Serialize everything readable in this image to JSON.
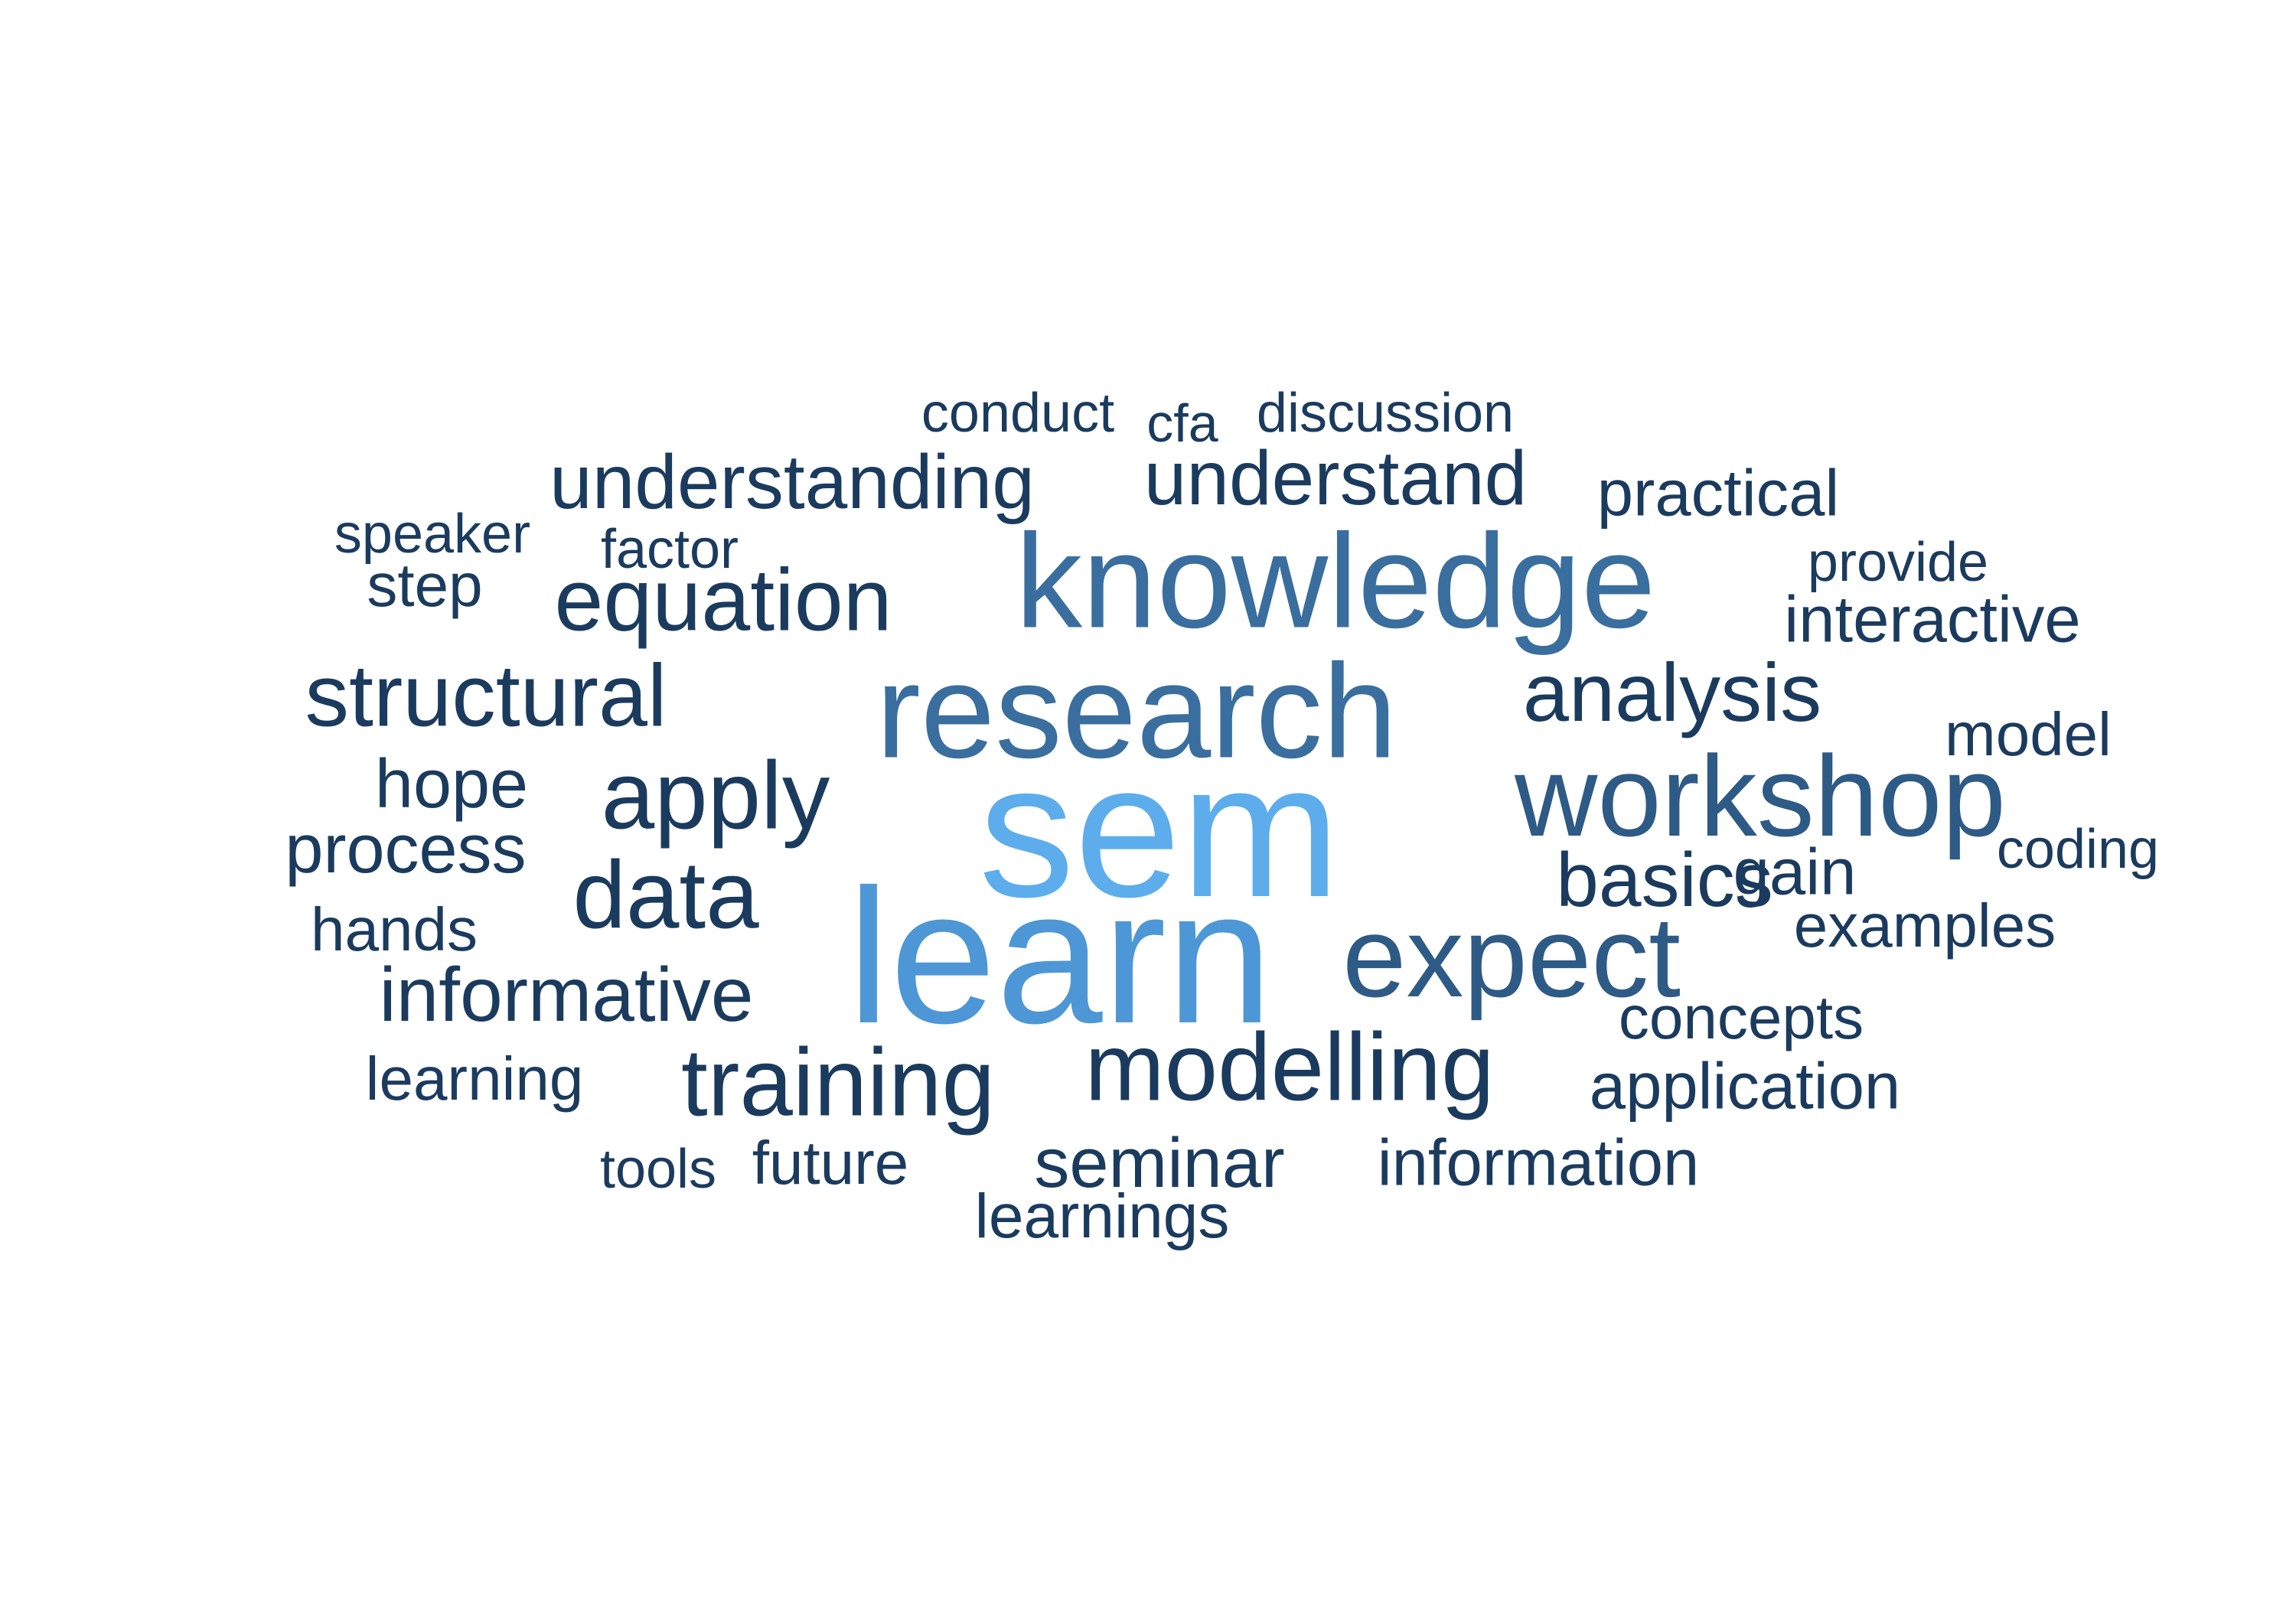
{
  "word_cloud": {
    "palette": {
      "top": "#5DADEC",
      "high": "#4E97D6",
      "mid": "#3A6E9E",
      "midlow": "#2E5A86",
      "low": "#1B3B5E"
    },
    "words": [
      {
        "text": "sem",
        "tone": "top"
      },
      {
        "text": "learn",
        "tone": "high"
      },
      {
        "text": "research",
        "tone": "mid"
      },
      {
        "text": "knowledge",
        "tone": "mid"
      },
      {
        "text": "workshop",
        "tone": "midlow"
      },
      {
        "text": "expect",
        "tone": "midlow"
      },
      {
        "text": "modelling",
        "tone": "low"
      },
      {
        "text": "training",
        "tone": "low"
      },
      {
        "text": "equation",
        "tone": "low"
      },
      {
        "text": "structural",
        "tone": "low"
      },
      {
        "text": "apply",
        "tone": "low"
      },
      {
        "text": "data",
        "tone": "low"
      },
      {
        "text": "analysis",
        "tone": "low"
      },
      {
        "text": "understanding",
        "tone": "low"
      },
      {
        "text": "understand",
        "tone": "low"
      },
      {
        "text": "informative",
        "tone": "low"
      },
      {
        "text": "basics",
        "tone": "low"
      },
      {
        "text": "seminar",
        "tone": "low"
      },
      {
        "text": "interactive",
        "tone": "low"
      },
      {
        "text": "application",
        "tone": "low"
      },
      {
        "text": "practical",
        "tone": "low"
      },
      {
        "text": "information",
        "tone": "low"
      },
      {
        "text": "process",
        "tone": "low"
      },
      {
        "text": "hope",
        "tone": "low"
      },
      {
        "text": "concepts",
        "tone": "low"
      },
      {
        "text": "examples",
        "tone": "low"
      },
      {
        "text": "learnings",
        "tone": "low"
      },
      {
        "text": "model",
        "tone": "low"
      },
      {
        "text": "gain",
        "tone": "low"
      },
      {
        "text": "hands",
        "tone": "low"
      },
      {
        "text": "learning",
        "tone": "low"
      },
      {
        "text": "future",
        "tone": "low"
      },
      {
        "text": "discussion",
        "tone": "low"
      },
      {
        "text": "conduct",
        "tone": "low"
      },
      {
        "text": "step",
        "tone": "low"
      },
      {
        "text": "speaker",
        "tone": "low"
      },
      {
        "text": "factor",
        "tone": "low"
      },
      {
        "text": "provide",
        "tone": "low"
      },
      {
        "text": "coding",
        "tone": "low"
      },
      {
        "text": "tools",
        "tone": "low"
      },
      {
        "text": "cfa",
        "tone": "low"
      }
    ]
  }
}
